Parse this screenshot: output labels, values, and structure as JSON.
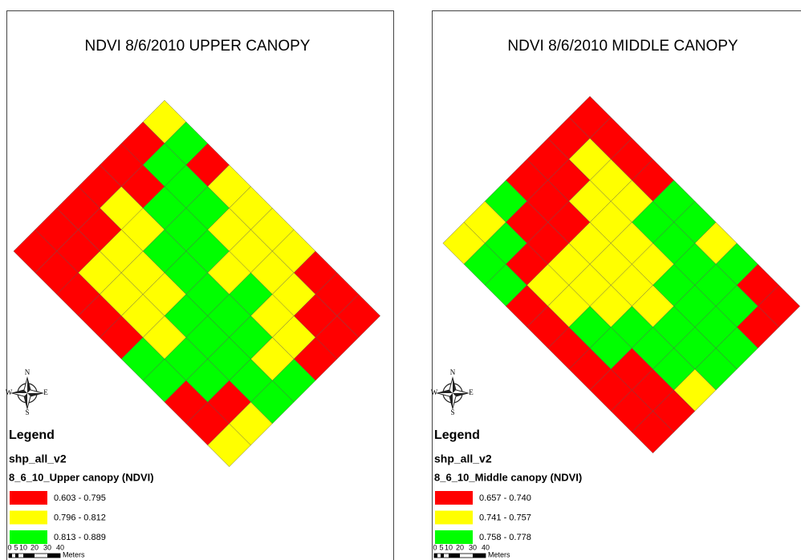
{
  "panels": [
    {
      "title": "NDVI 8/6/2010 UPPER CANOPY",
      "compass": {
        "n": "N",
        "s": "S",
        "e": "E",
        "w": "W"
      },
      "legend_title": "Legend",
      "layer": "shp_all_v2",
      "field": "8_6_10_Upper canopy (NDVI)",
      "classes": [
        {
          "label": "0.603 - 0.795",
          "color": "#ff0000"
        },
        {
          "label": "0.796 - 0.812",
          "color": "#ffff00"
        },
        {
          "label": "0.813 - 0.889",
          "color": "#00ff00"
        }
      ],
      "scale": {
        "ticks": [
          "0",
          "5",
          "10",
          "20",
          "30",
          "40"
        ],
        "unit": "Meters"
      }
    },
    {
      "title": "NDVI 8/6/2010 MIDDLE CANOPY",
      "compass": {
        "n": "N",
        "s": "S",
        "e": "E",
        "w": "W"
      },
      "legend_title": "Legend",
      "layer": "shp_all_v2",
      "field": "8_6_10_Middle canopy (NDVI)",
      "classes": [
        {
          "label": "0.657 - 0.740",
          "color": "#ff0000"
        },
        {
          "label": "0.741 - 0.757",
          "color": "#ffff00"
        },
        {
          "label": "0.758 - 0.778",
          "color": "#00ff00"
        }
      ],
      "scale": {
        "ticks": [
          "0",
          "5",
          "10",
          "20",
          "30",
          "40"
        ],
        "unit": "Meters"
      }
    }
  ]
}
